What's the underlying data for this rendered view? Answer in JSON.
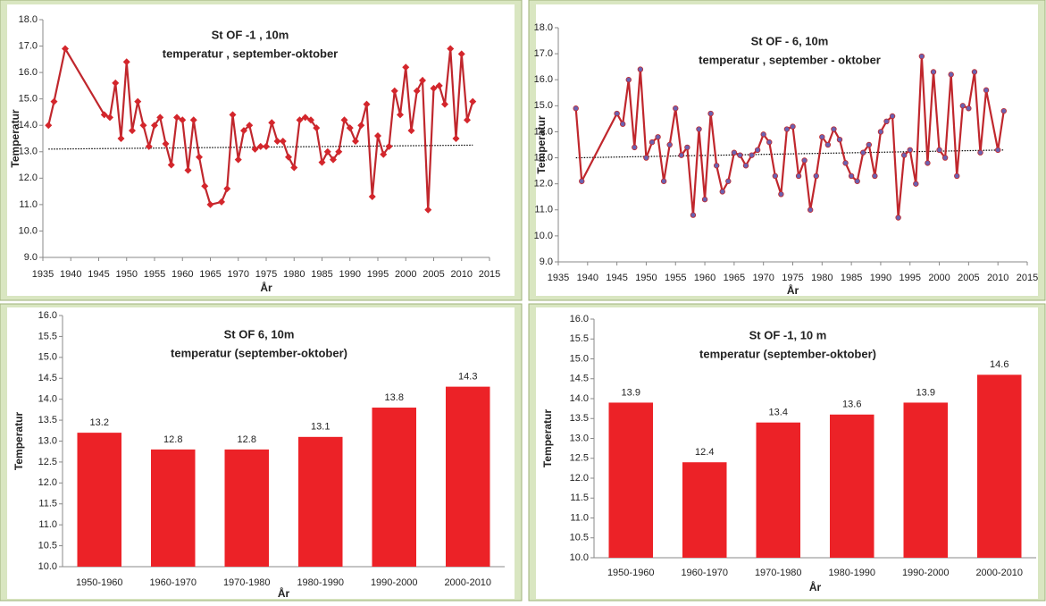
{
  "chart_data": [
    {
      "type": "line",
      "title": "St OF -1 , 10m",
      "subtitle": "temperatur , september-oktober",
      "xlabel": "År",
      "ylabel": "Temperatur",
      "x": [
        1936,
        1937,
        1939,
        1946,
        1947,
        1948,
        1949,
        1950,
        1951,
        1952,
        1953,
        1954,
        1955,
        1956,
        1957,
        1958,
        1959,
        1960,
        1961,
        1962,
        1963,
        1964,
        1965,
        1967,
        1968,
        1969,
        1970,
        1971,
        1972,
        1973,
        1974,
        1975,
        1976,
        1977,
        1978,
        1979,
        1980,
        1981,
        1982,
        1983,
        1984,
        1985,
        1986,
        1987,
        1988,
        1989,
        1990,
        1991,
        1992,
        1993,
        1994,
        1995,
        1996,
        1997,
        1998,
        1999,
        2000,
        2001,
        2002,
        2003,
        2004,
        2005,
        2006,
        2007,
        2008,
        2009,
        2010,
        2011,
        2012
      ],
      "values": [
        14.0,
        14.9,
        16.9,
        14.4,
        14.3,
        15.6,
        13.5,
        16.4,
        13.8,
        14.9,
        14.0,
        13.2,
        14.0,
        14.3,
        13.3,
        12.5,
        14.3,
        14.2,
        12.3,
        14.2,
        12.8,
        11.7,
        11.0,
        11.1,
        11.6,
        14.4,
        12.7,
        13.8,
        14.0,
        13.1,
        13.2,
        13.2,
        14.1,
        13.4,
        13.4,
        12.8,
        12.4,
        14.2,
        14.3,
        14.2,
        13.9,
        12.6,
        13.0,
        12.7,
        13.0,
        14.2,
        13.9,
        13.4,
        14.0,
        14.8,
        11.3,
        13.6,
        12.9,
        13.2,
        15.3,
        14.4,
        16.2,
        13.8,
        15.3,
        15.7,
        10.8,
        15.4,
        15.5,
        14.8,
        16.9,
        13.5,
        16.7,
        14.2,
        14.9
      ],
      "color": "#c0272d",
      "marker_color": "#d4262c",
      "marker": "diamond",
      "trendline": {
        "x": [
          1936,
          2012
        ],
        "values": [
          13.1,
          13.25
        ],
        "color": "#000000"
      },
      "xlim": [
        1935,
        2015
      ],
      "xticks": [
        1935,
        1940,
        1945,
        1950,
        1955,
        1960,
        1965,
        1970,
        1975,
        1980,
        1985,
        1990,
        1995,
        2000,
        2005,
        2010,
        2015
      ],
      "ylim": [
        9,
        18
      ],
      "yticks": [
        {
          "value": 9,
          "label": "9.0"
        },
        {
          "value": 10,
          "label": "10.0"
        },
        {
          "value": 11,
          "label": "11.0"
        },
        {
          "value": 12,
          "label": "12.0"
        },
        {
          "value": 13,
          "label": "13.0"
        },
        {
          "value": 14,
          "label": "14.0"
        },
        {
          "value": 15,
          "label": "15.0"
        },
        {
          "value": 16,
          "label": "16.0"
        },
        {
          "value": 17,
          "label": "17.0"
        },
        {
          "value": 18,
          "label": "18.0"
        }
      ]
    },
    {
      "type": "line",
      "title": "St OF - 6,  10m",
      "subtitle": "temperatur , september - oktober",
      "xlabel": "År",
      "ylabel": "Temperatur",
      "x": [
        1938,
        1939,
        1945,
        1946,
        1947,
        1948,
        1949,
        1950,
        1951,
        1952,
        1953,
        1954,
        1955,
        1956,
        1957,
        1958,
        1959,
        1960,
        1961,
        1962,
        1963,
        1964,
        1965,
        1966,
        1967,
        1968,
        1969,
        1970,
        1971,
        1972,
        1973,
        1974,
        1975,
        1976,
        1977,
        1978,
        1979,
        1980,
        1981,
        1982,
        1983,
        1984,
        1985,
        1986,
        1987,
        1988,
        1989,
        1990,
        1991,
        1992,
        1993,
        1994,
        1995,
        1996,
        1997,
        1998,
        1999,
        2000,
        2001,
        2002,
        2003,
        2004,
        2005,
        2006,
        2007,
        2008,
        2010,
        2011
      ],
      "values": [
        14.9,
        12.1,
        14.7,
        14.3,
        16.0,
        13.4,
        16.4,
        13.0,
        13.6,
        13.8,
        12.1,
        13.5,
        14.9,
        13.1,
        13.4,
        10.8,
        14.1,
        11.4,
        14.7,
        12.7,
        11.7,
        12.1,
        13.2,
        13.1,
        12.7,
        13.1,
        13.3,
        13.9,
        13.6,
        12.3,
        11.6,
        14.1,
        14.2,
        12.3,
        12.9,
        11.0,
        12.3,
        13.8,
        13.5,
        14.1,
        13.7,
        12.8,
        12.3,
        12.1,
        13.2,
        13.5,
        12.3,
        14.0,
        14.4,
        14.6,
        10.7,
        13.1,
        13.3,
        12.0,
        16.9,
        12.8,
        16.3,
        13.3,
        13.0,
        16.2,
        12.3,
        15.0,
        14.9,
        16.3,
        13.2,
        15.6,
        13.3,
        14.8
      ],
      "color": "#c0272d",
      "marker_color": "#6b62b0",
      "marker": "circle",
      "trendline": {
        "x": [
          1938,
          2011
        ],
        "values": [
          13.0,
          13.3
        ],
        "color": "#000000"
      },
      "xlim": [
        1935,
        2015
      ],
      "xticks": [
        1935,
        1940,
        1945,
        1950,
        1955,
        1960,
        1965,
        1970,
        1975,
        1980,
        1985,
        1990,
        1995,
        2000,
        2005,
        2010,
        2015
      ],
      "ylim": [
        9,
        18
      ],
      "yticks": [
        {
          "value": 9,
          "label": "9.0"
        },
        {
          "value": 10,
          "label": "10.0"
        },
        {
          "value": 11,
          "label": "11.0"
        },
        {
          "value": 12,
          "label": "12.0"
        },
        {
          "value": 13,
          "label": "13.0"
        },
        {
          "value": 14,
          "label": "14.0"
        },
        {
          "value": 15,
          "label": "15.0"
        },
        {
          "value": 16,
          "label": "16.0"
        },
        {
          "value": 17,
          "label": "17.0"
        },
        {
          "value": 18,
          "label": "18.0"
        }
      ]
    },
    {
      "type": "bar",
      "title": "St OF 6, 10m",
      "subtitle": "temperatur (september-oktober)",
      "xlabel": "År",
      "ylabel": "Temperatur",
      "categories": [
        "1950-1960",
        "1960-1970",
        "1970-1980",
        "1980-1990",
        "1990-2000",
        "2000-2010"
      ],
      "values": [
        13.2,
        12.8,
        12.8,
        13.1,
        13.8,
        14.3
      ],
      "color": "#ec2227",
      "ylim": [
        10,
        16
      ],
      "yticks": [
        {
          "value": 10,
          "label": "10.0"
        },
        10.5,
        {
          "value": 11,
          "label": "11.0"
        },
        11.5,
        {
          "value": 12,
          "label": "12.0"
        },
        12.5,
        {
          "value": 13,
          "label": "13.0"
        },
        13.5,
        {
          "value": 14,
          "label": "14.0"
        },
        14.5,
        {
          "value": 15,
          "label": "15.0"
        },
        15.5,
        {
          "value": 16,
          "label": "16.0"
        }
      ]
    },
    {
      "type": "bar",
      "title": "St OF -1, 10 m",
      "subtitle": "temperatur (september-oktober)",
      "xlabel": "År",
      "ylabel": "Temperatur",
      "categories": [
        "1950-1960",
        "1960-1970",
        "1970-1980",
        "1980-1990",
        "1990-2000",
        "2000-2010"
      ],
      "values": [
        13.9,
        12.4,
        13.4,
        13.6,
        13.9,
        14.6
      ],
      "color": "#ec2227",
      "ylim": [
        10,
        16
      ],
      "yticks": [
        {
          "value": 10,
          "label": "10.0"
        },
        10.5,
        {
          "value": 11,
          "label": "11.0"
        },
        11.5,
        {
          "value": 12,
          "label": "12.0"
        },
        12.5,
        {
          "value": 13,
          "label": "13.0"
        },
        13.5,
        {
          "value": 14,
          "label": "14.0"
        },
        14.5,
        {
          "value": 15,
          "label": "15.0"
        },
        15.5,
        {
          "value": 16,
          "label": "16.0"
        }
      ]
    }
  ]
}
